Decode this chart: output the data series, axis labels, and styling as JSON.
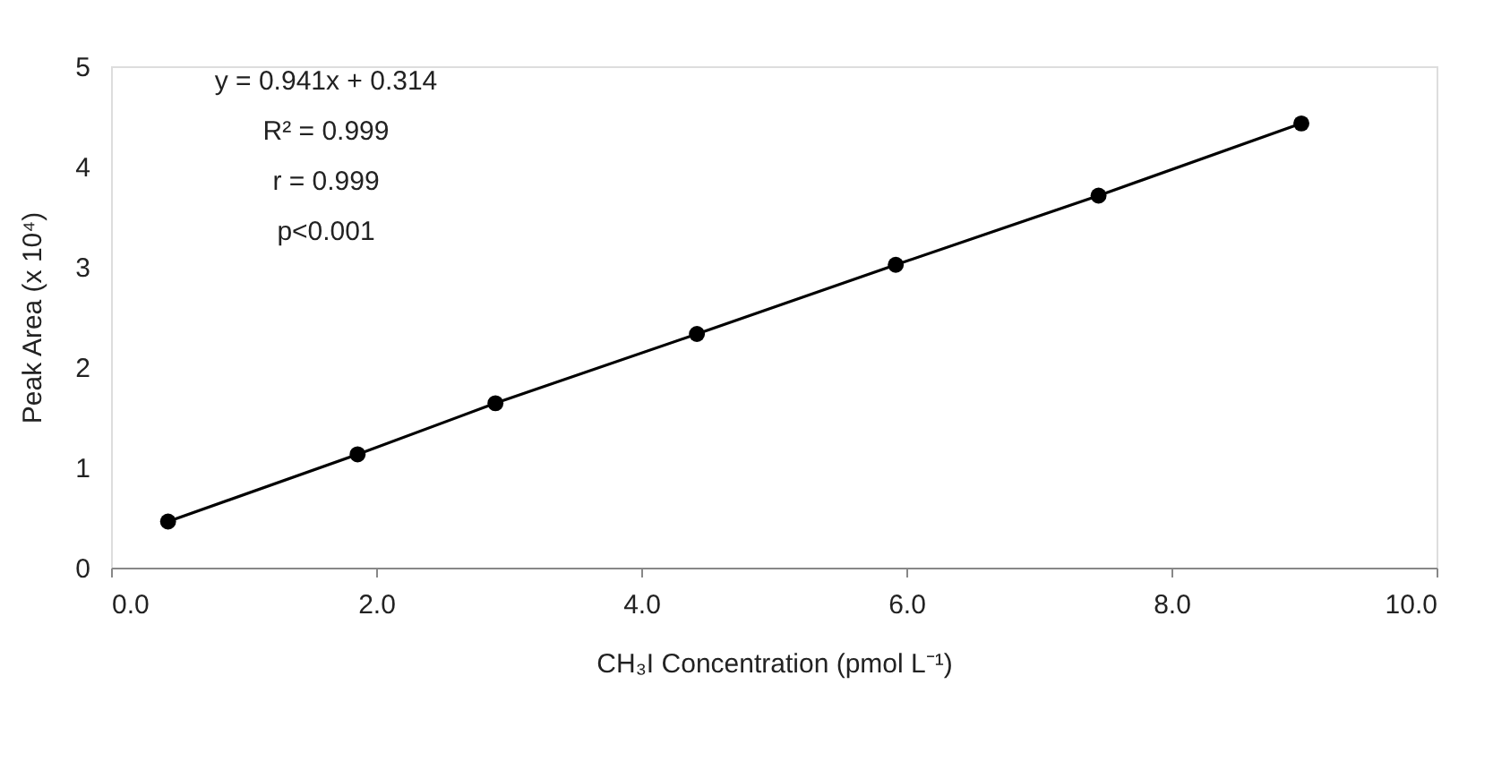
{
  "chart_data": {
    "type": "line",
    "xlabel": "CH₃I Concentration (pmol L⁻¹)",
    "ylabel": "Peak Area (x 10⁴)",
    "x": [
      0.43,
      1.86,
      2.9,
      4.42,
      5.92,
      7.45,
      8.98
    ],
    "series": [
      {
        "color": "#000000",
        "values": [
          0.46,
          1.13,
          1.64,
          2.33,
          3.02,
          3.71,
          4.43
        ]
      }
    ],
    "marker": "circle",
    "line_style": "solid",
    "grid": false,
    "xlim": [
      0,
      10
    ],
    "xticks": [
      {
        "value": 0,
        "label": "0.0"
      },
      {
        "value": 2,
        "label": "2.0"
      },
      {
        "value": 4,
        "label": "4.0"
      },
      {
        "value": 6,
        "label": "6.0"
      },
      {
        "value": 8,
        "label": "8.0"
      },
      {
        "value": 10,
        "label": "10.0"
      }
    ],
    "ylim": [
      0,
      5
    ],
    "yticks": [
      0,
      1,
      2,
      3,
      4,
      5
    ],
    "annotations": [
      "y = 0.941x + 0.314",
      "R² = 0.999",
      "r = 0.999",
      "p<0.001"
    ]
  }
}
